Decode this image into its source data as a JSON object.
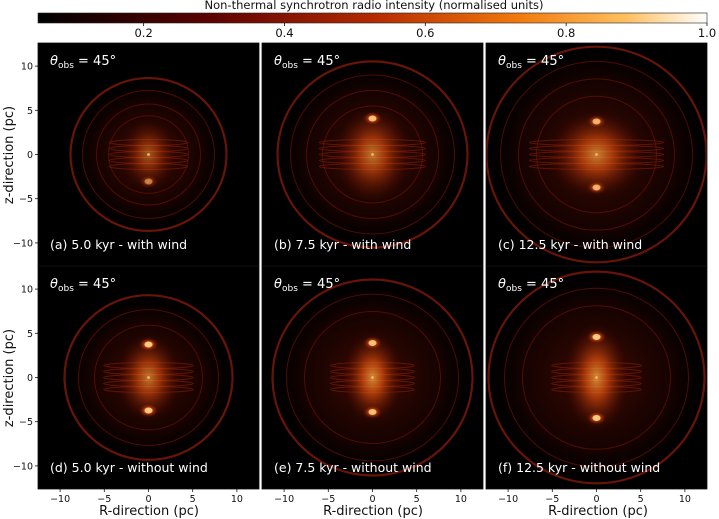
{
  "colorbar": {
    "label": "Non-thermal synchrotron radio intensity (normalised units)",
    "ticks": [
      "0.2",
      "0.4",
      "0.6",
      "0.8",
      "1.0"
    ],
    "tick_values": [
      0.2,
      0.4,
      0.6,
      0.8,
      1.0
    ],
    "range": [
      0.05,
      1.0
    ],
    "colormap": "gist_heat"
  },
  "axes": {
    "xlabel": "R-direction (pc)",
    "ylabel": "z-direction (pc)",
    "xticks": [
      "−10",
      "−5",
      "0",
      "5",
      "10"
    ],
    "yticks": [
      "10",
      "5",
      "0",
      "−5",
      "−10"
    ]
  },
  "panels": [
    {
      "id": "a",
      "angle_label": "45°",
      "caption": "(a) 5.0 kyr - with wind"
    },
    {
      "id": "b",
      "angle_label": "45°",
      "caption": "(b) 7.5 kyr - with wind"
    },
    {
      "id": "c",
      "angle_label": "45°",
      "caption": "(c) 12.5 kyr - with wind"
    },
    {
      "id": "d",
      "angle_label": "45°",
      "caption": "(d) 5.0 kyr - without wind"
    },
    {
      "id": "e",
      "angle_label": "45°",
      "caption": "(e) 7.5 kyr - without wind"
    },
    {
      "id": "f",
      "angle_label": "45°",
      "caption": "(f) 12.5 kyr - without wind"
    }
  ],
  "colors": {
    "background": "#000000",
    "text_on_panel": "#ffffff",
    "remnant_outer": "#5a0b02",
    "remnant_core": "#ff7a1a"
  }
}
